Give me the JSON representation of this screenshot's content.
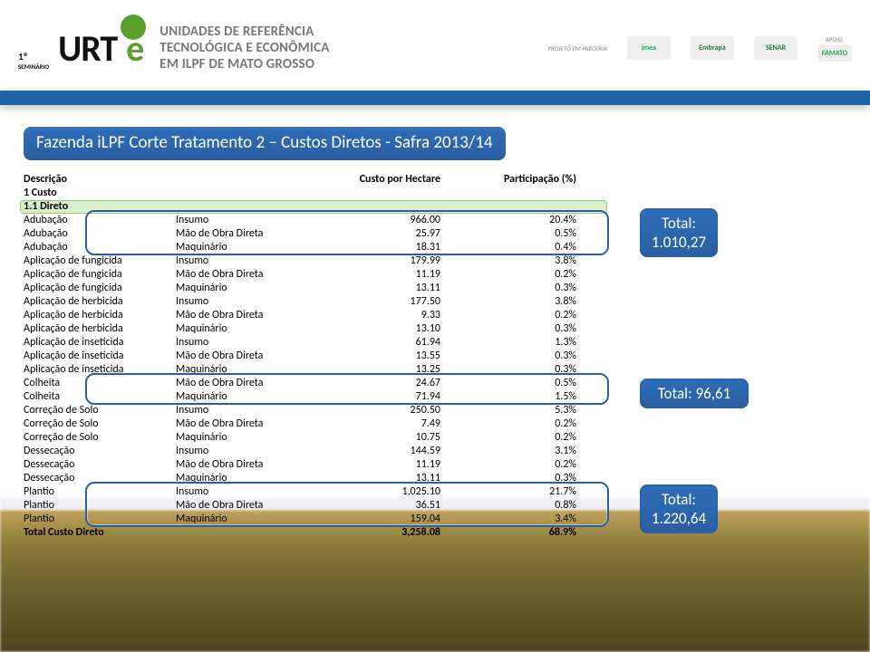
{
  "header": {
    "seminar_ord": "1º",
    "seminar_word": "SEMINÁRIO",
    "logo_text_a": "URT",
    "logo_text_b": "e",
    "title_l1": "UNIDADES DE REFERÊNCIA",
    "title_l2": "TECNOLÓGICA E ECONÔMICA",
    "title_l3": "EM ILPF DE MATO GROSSO",
    "projeto_label": "PROJETO EM PARCERIA",
    "logo1": "imea",
    "logo2": "Embrapa",
    "logo3": "SENAR",
    "apoio_label": "Apoio:",
    "logo4": "FAMATO"
  },
  "slide": {
    "title": "Fazenda iLPF Corte Tratamento 2 – Custos Diretos - Safra 2013/14"
  },
  "table": {
    "columns": {
      "desc": "Descrição",
      "custo": "Custo por Hectare",
      "part": "Participação (%)"
    },
    "section1": "1 Custo",
    "section2": "1.1 Direto",
    "rows": [
      {
        "d": "Adubação",
        "t": "Insumo",
        "v": "966.00",
        "p": "20.4%"
      },
      {
        "d": "Adubação",
        "t": "Mão de Obra Direta",
        "v": "25.97",
        "p": "0.5%"
      },
      {
        "d": "Adubação",
        "t": "Maquinário",
        "v": "18.31",
        "p": "0.4%"
      },
      {
        "d": "Aplicação de fungicida",
        "t": "Insumo",
        "v": "179.99",
        "p": "3.8%"
      },
      {
        "d": "Aplicação de fungicida",
        "t": "Mão de Obra Direta",
        "v": "11.19",
        "p": "0.2%"
      },
      {
        "d": "Aplicação de fungicida",
        "t": "Maquinário",
        "v": "13.11",
        "p": "0.3%"
      },
      {
        "d": "Aplicação de herbicida",
        "t": "Insumo",
        "v": "177.50",
        "p": "3.8%"
      },
      {
        "d": "Aplicação de herbicida",
        "t": "Mão de Obra Direta",
        "v": "9.33",
        "p": "0.2%"
      },
      {
        "d": "Aplicação de herbicida",
        "t": "Maquinário",
        "v": "13.10",
        "p": "0.3%"
      },
      {
        "d": "Aplicação de inseticida",
        "t": "Insumo",
        "v": "61.94",
        "p": "1.3%"
      },
      {
        "d": "Aplicação de inseticida",
        "t": "Mão de Obra Direta",
        "v": "13.55",
        "p": "0.3%"
      },
      {
        "d": "Aplicação de inseticida",
        "t": "Maquinário",
        "v": "13.25",
        "p": "0.3%"
      },
      {
        "d": "Colheita",
        "t": "Mão de Obra Direta",
        "v": "24.67",
        "p": "0.5%"
      },
      {
        "d": "Colheita",
        "t": "Maquinário",
        "v": "71.94",
        "p": "1.5%"
      },
      {
        "d": "Correção de Solo",
        "t": "Insumo",
        "v": "250.50",
        "p": "5.3%"
      },
      {
        "d": "Correção de Solo",
        "t": "Mão de Obra Direta",
        "v": "7.49",
        "p": "0.2%"
      },
      {
        "d": "Correção de Solo",
        "t": "Maquinário",
        "v": "10.75",
        "p": "0.2%"
      },
      {
        "d": "Dessecação",
        "t": "Insumo",
        "v": "144.59",
        "p": "3.1%"
      },
      {
        "d": "Dessecação",
        "t": "Mão de Obra Direta",
        "v": "11.19",
        "p": "0.2%"
      },
      {
        "d": "Dessecação",
        "t": "Maquinário",
        "v": "13.11",
        "p": "0.3%"
      },
      {
        "d": "Plantio",
        "t": "Insumo",
        "v": "1,025.10",
        "p": "21.7%"
      },
      {
        "d": "Plantio",
        "t": "Mão de Obra Direta",
        "v": "36.51",
        "p": "0.8%"
      },
      {
        "d": "Plantio",
        "t": "Maquinário",
        "v": "159.04",
        "p": "3.4%"
      }
    ],
    "total": {
      "label": "Total Custo Direto",
      "v": "3,258.08",
      "p": "68.9%"
    }
  },
  "callouts": {
    "adub": {
      "label": "Total:",
      "value": "1.010,27"
    },
    "colh": {
      "label": "Total: 96,61"
    },
    "plan": {
      "label": "Total:",
      "value": "1.220,64"
    }
  },
  "styling": {
    "callout_bg": "#2a5fa1",
    "ring_border": "#2a5fa1",
    "greenbox_bg": "#d2eabe",
    "blue_strip": "#1f62a6",
    "header_text": "#787878"
  }
}
